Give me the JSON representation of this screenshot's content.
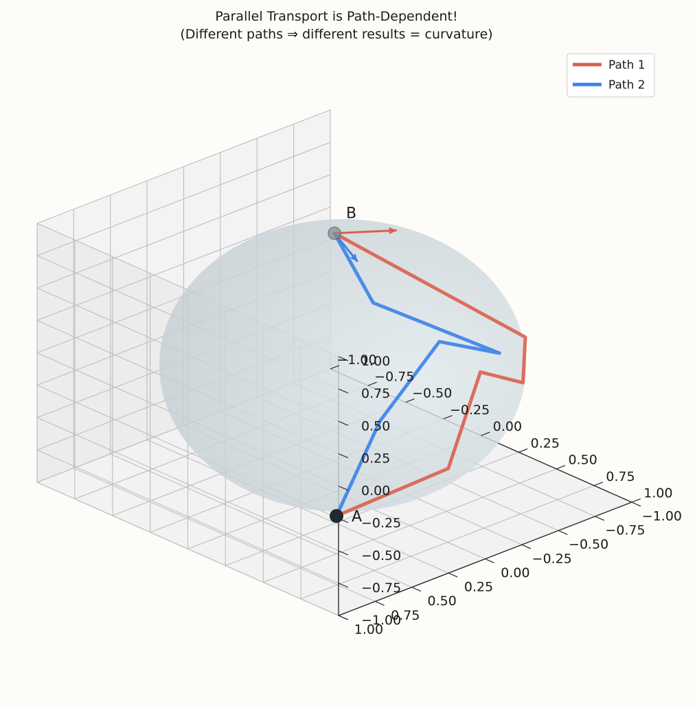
{
  "chart_data": {
    "type": "3d-line",
    "title_line1": "Parallel Transport is Path-Dependent!",
    "title_line2": "(Different paths ⇒ different results = curvature)",
    "axes": {
      "x": {
        "range": [
          -1,
          1
        ],
        "ticks": [
          "−1.00",
          "−0.75",
          "−0.50",
          "−0.25",
          "0.00",
          "0.25",
          "0.50",
          "0.75",
          "1.00"
        ]
      },
      "y": {
        "range": [
          -1,
          1
        ],
        "ticks": [
          "−1.00",
          "−0.75",
          "−0.50",
          "−0.25",
          "0.00",
          "0.25",
          "0.50",
          "0.75",
          "1.00"
        ]
      },
      "z": {
        "range": [
          -1,
          1
        ],
        "ticks": [
          "−1.00",
          "−0.75",
          "−0.50",
          "−0.25",
          "0.00",
          "0.25",
          "0.50",
          "0.75",
          "1.00"
        ]
      }
    },
    "grid": true,
    "surface": {
      "shape": "unit sphere",
      "color": "#c5d2d8"
    },
    "points": [
      {
        "label": "A",
        "xyz": [
          0.5,
          0.5,
          -0.707
        ],
        "color": "#1f2a30"
      },
      {
        "label": "B",
        "xyz": [
          0,
          0,
          1
        ],
        "color": "#8a8f94"
      }
    ],
    "series": [
      {
        "name": "Path 1",
        "color": "#d9604c",
        "points": [
          [
            0.5,
            0.5,
            -0.707
          ],
          [
            0.95,
            0.2,
            -0.24
          ],
          [
            0.92,
            -0.05,
            0.38
          ],
          [
            0.93,
            -0.33,
            0.18
          ],
          [
            0.78,
            -0.5,
            0.38
          ],
          [
            0,
            0,
            1
          ]
        ]
      },
      {
        "name": "Path 2",
        "color": "#3b82e8",
        "points": [
          [
            0.5,
            0.5,
            -0.707
          ],
          [
            0.4,
            0.1,
            -0.2
          ],
          [
            0.55,
            -0.15,
            0.38
          ],
          [
            0.9,
            -0.2,
            0.45
          ],
          [
            0.5,
            0.25,
            0.83
          ],
          [
            0,
            0,
            1
          ]
        ]
      }
    ],
    "vectors_at_B": [
      {
        "series": "Path 1",
        "color": "#d9604c",
        "direction": [
          0.17,
          -0.25,
          0
        ]
      },
      {
        "series": "Path 2",
        "color": "#3b82e8",
        "direction": [
          0.3,
          0.15,
          0
        ]
      }
    ],
    "legend": {
      "placement": "top-right",
      "entries": [
        "Path 1",
        "Path 2"
      ]
    }
  }
}
